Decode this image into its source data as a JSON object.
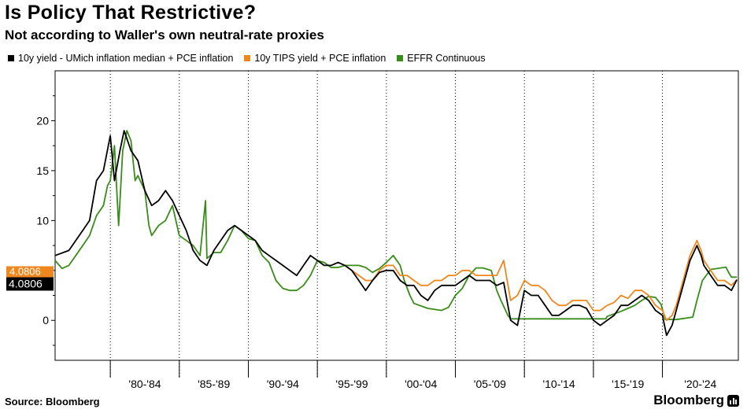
{
  "header": {
    "title": "Is Policy That Restrictive?",
    "subtitle": "Not according to Waller's own neutral-rate proxies"
  },
  "legend": [
    {
      "label": "10y yield - UMich inflation median + PCE inflation",
      "color": "#000000"
    },
    {
      "label": "10y TIPS yield + PCE inflation",
      "color": "#f0871e"
    },
    {
      "label": "EFFR Continuous",
      "color": "#3a8c1a"
    }
  ],
  "footer": {
    "source": "Source: Bloomberg",
    "brand": "Bloomberg",
    "brand_icon": "bar-chart-icon"
  },
  "last_value_labels": {
    "black": "4.0806",
    "orange": "4.0806"
  },
  "chart_data": {
    "type": "line",
    "title": "Is Policy That Restrictive?",
    "subtitle": "Not according to Waller's own neutral-rate proxies",
    "x_tick_labels": [
      "'80-'84",
      "'85-'89",
      "'90-'94",
      "'95-'99",
      "'00-'04",
      "'05-'09",
      "'10-'14",
      "'15-'19",
      "'20-'24"
    ],
    "xlim": [
      1976.0,
      2025.5
    ],
    "ylim": [
      -4,
      25
    ],
    "y_ticks": [
      0,
      5,
      10,
      15,
      20
    ],
    "y_axis_side": "left",
    "grid": {
      "vertical": true,
      "horizontal": false
    },
    "legend_position": "top",
    "series": [
      {
        "name": "10y yield - UMich inflation median + PCE inflation",
        "color": "#000000",
        "points": [
          [
            1976.0,
            6.5
          ],
          [
            1977.0,
            7.0
          ],
          [
            1978.0,
            9.0
          ],
          [
            1978.5,
            10.0
          ],
          [
            1979.0,
            14.0
          ],
          [
            1979.5,
            15.0
          ],
          [
            1980.0,
            18.5
          ],
          [
            1980.3,
            14.0
          ],
          [
            1980.7,
            17.0
          ],
          [
            1981.0,
            19.0
          ],
          [
            1981.5,
            17.0
          ],
          [
            1982.0,
            16.0
          ],
          [
            1982.5,
            13.0
          ],
          [
            1983.0,
            11.5
          ],
          [
            1983.5,
            12.0
          ],
          [
            1984.0,
            13.0
          ],
          [
            1984.5,
            12.0
          ],
          [
            1985.0,
            10.5
          ],
          [
            1985.5,
            9.0
          ],
          [
            1986.0,
            7.0
          ],
          [
            1986.5,
            6.0
          ],
          [
            1987.0,
            5.5
          ],
          [
            1987.5,
            7.0
          ],
          [
            1988.0,
            8.0
          ],
          [
            1988.5,
            9.0
          ],
          [
            1989.0,
            9.5
          ],
          [
            1989.5,
            9.0
          ],
          [
            1990.0,
            8.5
          ],
          [
            1990.5,
            8.0
          ],
          [
            1991.0,
            7.0
          ],
          [
            1991.5,
            6.5
          ],
          [
            1992.0,
            6.0
          ],
          [
            1992.5,
            5.5
          ],
          [
            1993.0,
            5.0
          ],
          [
            1993.5,
            4.5
          ],
          [
            1994.0,
            5.5
          ],
          [
            1994.5,
            6.5
          ],
          [
            1995.0,
            6.0
          ],
          [
            1995.5,
            5.5
          ],
          [
            1996.0,
            5.5
          ],
          [
            1996.5,
            5.8
          ],
          [
            1997.0,
            5.5
          ],
          [
            1997.5,
            5.0
          ],
          [
            1998.0,
            4.0
          ],
          [
            1998.5,
            3.0
          ],
          [
            1999.0,
            4.0
          ],
          [
            1999.5,
            4.8
          ],
          [
            2000.0,
            5.0
          ],
          [
            2000.5,
            5.0
          ],
          [
            2001.0,
            4.0
          ],
          [
            2001.5,
            3.5
          ],
          [
            2002.0,
            3.5
          ],
          [
            2002.5,
            2.5
          ],
          [
            2003.0,
            2.0
          ],
          [
            2003.5,
            3.0
          ],
          [
            2004.0,
            3.5
          ],
          [
            2004.5,
            3.5
          ],
          [
            2005.0,
            3.5
          ],
          [
            2005.5,
            4.0
          ],
          [
            2006.0,
            4.5
          ],
          [
            2006.5,
            4.0
          ],
          [
            2007.0,
            4.0
          ],
          [
            2007.5,
            4.0
          ],
          [
            2008.0,
            3.5
          ],
          [
            2008.5,
            3.8
          ],
          [
            2009.0,
            0.0
          ],
          [
            2009.5,
            -0.5
          ],
          [
            2010.0,
            3.0
          ],
          [
            2010.5,
            2.5
          ],
          [
            2011.0,
            2.5
          ],
          [
            2011.5,
            1.5
          ],
          [
            2012.0,
            0.5
          ],
          [
            2012.5,
            0.5
          ],
          [
            2013.0,
            1.0
          ],
          [
            2013.5,
            1.5
          ],
          [
            2014.0,
            1.5
          ],
          [
            2014.5,
            1.2
          ],
          [
            2015.0,
            0.0
          ],
          [
            2015.5,
            -0.5
          ],
          [
            2016.0,
            0.0
          ],
          [
            2016.5,
            0.5
          ],
          [
            2017.0,
            1.5
          ],
          [
            2017.5,
            1.5
          ],
          [
            2018.0,
            2.0
          ],
          [
            2018.5,
            2.5
          ],
          [
            2019.0,
            2.0
          ],
          [
            2019.5,
            1.0
          ],
          [
            2020.0,
            0.5
          ],
          [
            2020.3,
            -1.5
          ],
          [
            2020.7,
            -0.5
          ],
          [
            2021.0,
            1.0
          ],
          [
            2021.5,
            3.5
          ],
          [
            2022.0,
            6.0
          ],
          [
            2022.5,
            7.5
          ],
          [
            2022.8,
            6.5
          ],
          [
            2023.0,
            5.5
          ],
          [
            2023.5,
            4.5
          ],
          [
            2024.0,
            3.5
          ],
          [
            2024.5,
            3.5
          ],
          [
            2025.0,
            3.0
          ],
          [
            2025.4,
            4.08
          ]
        ]
      },
      {
        "name": "10y TIPS yield + PCE inflation",
        "color": "#f0871e",
        "points": [
          [
            1997.0,
            5.5
          ],
          [
            1997.5,
            5.0
          ],
          [
            1998.0,
            4.5
          ],
          [
            1998.5,
            4.0
          ],
          [
            1999.0,
            4.0
          ],
          [
            1999.5,
            5.0
          ],
          [
            2000.0,
            5.5
          ],
          [
            2000.5,
            5.5
          ],
          [
            2001.0,
            4.5
          ],
          [
            2001.5,
            4.5
          ],
          [
            2002.0,
            4.0
          ],
          [
            2002.5,
            3.5
          ],
          [
            2003.0,
            3.5
          ],
          [
            2003.5,
            4.0
          ],
          [
            2004.0,
            4.0
          ],
          [
            2004.5,
            4.5
          ],
          [
            2005.0,
            4.5
          ],
          [
            2005.5,
            5.0
          ],
          [
            2006.0,
            5.0
          ],
          [
            2006.5,
            4.5
          ],
          [
            2007.0,
            4.5
          ],
          [
            2007.5,
            4.5
          ],
          [
            2008.0,
            4.5
          ],
          [
            2008.5,
            6.0
          ],
          [
            2009.0,
            2.0
          ],
          [
            2009.5,
            2.5
          ],
          [
            2010.0,
            4.0
          ],
          [
            2010.5,
            3.5
          ],
          [
            2011.0,
            3.5
          ],
          [
            2011.5,
            3.0
          ],
          [
            2012.0,
            2.0
          ],
          [
            2012.5,
            1.5
          ],
          [
            2013.0,
            1.5
          ],
          [
            2013.5,
            2.0
          ],
          [
            2014.0,
            2.0
          ],
          [
            2014.5,
            2.0
          ],
          [
            2015.0,
            1.0
          ],
          [
            2015.5,
            1.0
          ],
          [
            2016.0,
            1.5
          ],
          [
            2016.5,
            1.8
          ],
          [
            2017.0,
            2.5
          ],
          [
            2017.5,
            2.2
          ],
          [
            2018.0,
            3.0
          ],
          [
            2018.5,
            3.0
          ],
          [
            2019.0,
            2.5
          ],
          [
            2019.5,
            1.5
          ],
          [
            2020.0,
            1.0
          ],
          [
            2020.3,
            0.0
          ],
          [
            2020.7,
            0.5
          ],
          [
            2021.0,
            1.5
          ],
          [
            2021.5,
            4.0
          ],
          [
            2022.0,
            6.5
          ],
          [
            2022.5,
            8.0
          ],
          [
            2022.8,
            7.0
          ],
          [
            2023.0,
            6.0
          ],
          [
            2023.5,
            5.0
          ],
          [
            2024.0,
            4.0
          ],
          [
            2024.5,
            4.0
          ],
          [
            2025.0,
            3.5
          ],
          [
            2025.4,
            4.08
          ]
        ]
      },
      {
        "name": "EFFR Continuous",
        "color": "#3a8c1a",
        "points": [
          [
            1976.0,
            6.0
          ],
          [
            1976.5,
            5.2
          ],
          [
            1977.0,
            5.5
          ],
          [
            1977.5,
            6.5
          ],
          [
            1978.0,
            7.5
          ],
          [
            1978.5,
            8.5
          ],
          [
            1979.0,
            10.5
          ],
          [
            1979.5,
            11.5
          ],
          [
            1979.8,
            13.5
          ],
          [
            1980.0,
            14.0
          ],
          [
            1980.3,
            17.5
          ],
          [
            1980.6,
            9.5
          ],
          [
            1980.9,
            17.0
          ],
          [
            1981.2,
            19.0
          ],
          [
            1981.5,
            18.0
          ],
          [
            1981.8,
            14.0
          ],
          [
            1982.0,
            14.5
          ],
          [
            1982.5,
            13.0
          ],
          [
            1982.8,
            9.5
          ],
          [
            1983.0,
            8.5
          ],
          [
            1983.5,
            9.5
          ],
          [
            1984.0,
            10.0
          ],
          [
            1984.5,
            11.5
          ],
          [
            1985.0,
            8.5
          ],
          [
            1985.5,
            8.0
          ],
          [
            1986.0,
            7.5
          ],
          [
            1986.5,
            6.5
          ],
          [
            1986.9,
            12.0
          ],
          [
            1987.0,
            6.2
          ],
          [
            1987.5,
            6.8
          ],
          [
            1988.0,
            6.8
          ],
          [
            1988.5,
            8.0
          ],
          [
            1989.0,
            9.5
          ],
          [
            1989.5,
            9.0
          ],
          [
            1990.0,
            8.2
          ],
          [
            1990.5,
            8.0
          ],
          [
            1991.0,
            6.5
          ],
          [
            1991.5,
            5.8
          ],
          [
            1992.0,
            4.0
          ],
          [
            1992.5,
            3.2
          ],
          [
            1993.0,
            3.0
          ],
          [
            1993.5,
            3.0
          ],
          [
            1994.0,
            3.5
          ],
          [
            1994.5,
            4.5
          ],
          [
            1995.0,
            6.0
          ],
          [
            1995.5,
            5.8
          ],
          [
            1996.0,
            5.3
          ],
          [
            1996.5,
            5.3
          ],
          [
            1997.0,
            5.5
          ],
          [
            1997.5,
            5.5
          ],
          [
            1998.0,
            5.5
          ],
          [
            1998.5,
            5.3
          ],
          [
            1999.0,
            4.8
          ],
          [
            1999.5,
            5.2
          ],
          [
            2000.0,
            5.8
          ],
          [
            2000.5,
            6.5
          ],
          [
            2001.0,
            5.5
          ],
          [
            2001.3,
            4.0
          ],
          [
            2001.7,
            2.5
          ],
          [
            2002.0,
            1.7
          ],
          [
            2003.0,
            1.2
          ],
          [
            2004.0,
            1.0
          ],
          [
            2004.5,
            1.3
          ],
          [
            2005.0,
            2.5
          ],
          [
            2005.5,
            3.2
          ],
          [
            2006.0,
            4.5
          ],
          [
            2006.5,
            5.25
          ],
          [
            2007.0,
            5.25
          ],
          [
            2007.6,
            5.0
          ],
          [
            2008.0,
            3.0
          ],
          [
            2008.3,
            2.0
          ],
          [
            2008.8,
            0.5
          ],
          [
            2009.0,
            0.15
          ],
          [
            2012.0,
            0.15
          ],
          [
            2015.9,
            0.15
          ],
          [
            2016.0,
            0.4
          ],
          [
            2017.0,
            0.9
          ],
          [
            2017.5,
            1.2
          ],
          [
            2018.0,
            1.5
          ],
          [
            2018.5,
            2.0
          ],
          [
            2019.0,
            2.4
          ],
          [
            2019.5,
            2.3
          ],
          [
            2019.9,
            1.6
          ],
          [
            2020.2,
            0.1
          ],
          [
            2021.0,
            0.08
          ],
          [
            2022.2,
            0.33
          ],
          [
            2022.5,
            2.0
          ],
          [
            2022.9,
            4.0
          ],
          [
            2023.5,
            5.1
          ],
          [
            2024.6,
            5.33
          ],
          [
            2024.8,
            4.8
          ],
          [
            2025.0,
            4.33
          ],
          [
            2025.4,
            4.33
          ]
        ]
      }
    ]
  }
}
